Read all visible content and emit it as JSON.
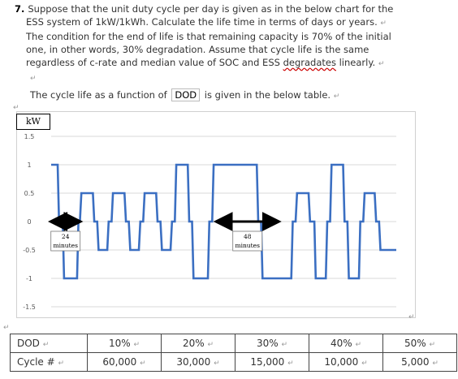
{
  "question": {
    "number": "7.",
    "lines": [
      "Suppose that the unit duty cycle per day is given as in the below chart for the",
      "ESS system of 1kW/1kWh. Calculate the life time in terms of days or years.",
      "The condition for the end of life is that remaining capacity is 70% of the initial",
      "one, in other words, 30% degradation.  Assume that cycle life is the same",
      "regardless of c-rate and median value of SOC and ESS"
    ],
    "last_word": "degradates",
    "last_tail": " linearly.",
    "intro_before": "The cycle life as a function of",
    "intro_dod": "DOD",
    "intro_after": "is given in the below table."
  },
  "chart_data": {
    "type": "line",
    "unit_label": "kW",
    "ylim": [
      -1.5,
      1.5
    ],
    "y_ticks": [
      "1.5",
      "1",
      "0.5",
      "0",
      "-0.5",
      "-1",
      "-1.5"
    ],
    "x_range": [
      0,
      24
    ],
    "series_color": "#3b6fc2",
    "series": [
      {
        "points": [
          [
            0,
            1
          ],
          [
            0.45,
            1
          ],
          [
            0.55,
            0
          ],
          [
            0.8,
            0
          ],
          [
            0.9,
            -1
          ],
          [
            1.8,
            -1
          ],
          [
            1.9,
            0
          ],
          [
            2,
            0
          ],
          [
            2.1,
            0.5
          ],
          [
            2.9,
            0.5
          ],
          [
            3,
            0
          ],
          [
            3.2,
            0
          ],
          [
            3.3,
            -0.5
          ],
          [
            3.9,
            -0.5
          ],
          [
            4,
            0
          ],
          [
            4.2,
            0
          ],
          [
            4.3,
            0.5
          ],
          [
            5.1,
            0.5
          ],
          [
            5.2,
            0
          ],
          [
            5.4,
            0
          ],
          [
            5.5,
            -0.5
          ],
          [
            6.1,
            -0.5
          ],
          [
            6.2,
            0
          ],
          [
            6.4,
            0
          ],
          [
            6.5,
            0.5
          ],
          [
            7.3,
            0.5
          ],
          [
            7.4,
            0
          ],
          [
            7.6,
            0
          ],
          [
            7.7,
            -0.5
          ],
          [
            8.3,
            -0.5
          ],
          [
            8.4,
            0
          ],
          [
            8.6,
            0
          ],
          [
            8.7,
            1
          ],
          [
            9.5,
            1
          ],
          [
            9.6,
            0
          ],
          [
            9.8,
            0
          ],
          [
            9.9,
            -1
          ],
          [
            10.9,
            -1
          ],
          [
            11,
            0
          ],
          [
            11.2,
            0
          ],
          [
            11.3,
            1
          ],
          [
            14.3,
            1
          ],
          [
            14.4,
            0
          ],
          [
            14.6,
            0
          ],
          [
            14.7,
            -1
          ],
          [
            16.7,
            -1
          ],
          [
            16.8,
            0
          ],
          [
            17,
            0
          ],
          [
            17.1,
            0.5
          ],
          [
            17.9,
            0.5
          ],
          [
            18,
            0
          ],
          [
            18.3,
            0
          ],
          [
            18.4,
            -1
          ],
          [
            19.1,
            -1
          ],
          [
            19.2,
            0
          ],
          [
            19.4,
            0
          ],
          [
            19.5,
            1
          ],
          [
            20.3,
            1
          ],
          [
            20.4,
            0
          ],
          [
            20.6,
            0
          ],
          [
            20.7,
            -1
          ],
          [
            21.4,
            -1
          ],
          [
            21.5,
            0
          ],
          [
            21.7,
            0
          ],
          [
            21.8,
            0.5
          ],
          [
            22.5,
            0.5
          ],
          [
            22.6,
            0
          ],
          [
            22.8,
            0
          ],
          [
            22.9,
            -0.5
          ],
          [
            24,
            -0.5
          ]
        ]
      }
    ],
    "annotations": [
      {
        "label_num": "24",
        "label_unit": "minutes",
        "from": 0,
        "to": 2
      },
      {
        "label_num": "48",
        "label_unit": "minutes",
        "from": 11.5,
        "to": 15.8
      }
    ]
  },
  "table": {
    "row1_label": "DOD",
    "row2_label": "Cycle #",
    "dod": [
      "10%",
      "20%",
      "30%",
      "40%",
      "50%"
    ],
    "cycles": [
      "60,000",
      "30,000",
      "15,000",
      "10,000",
      "5,000"
    ]
  }
}
